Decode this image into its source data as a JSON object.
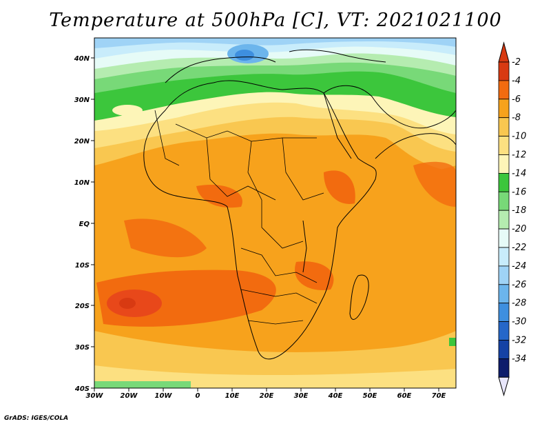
{
  "title": "Temperature at 500hPa [C], VT: 2021021100",
  "credit": "GrADS: IGES/COLA",
  "map": {
    "lon_labels": [
      "30W",
      "20W",
      "10W",
      "0",
      "10E",
      "20E",
      "30E",
      "40E",
      "50E",
      "60E",
      "70E"
    ],
    "lat_labels": [
      "40N",
      "30N",
      "20N",
      "10N",
      "EQ",
      "10S",
      "20S",
      "30S",
      "40S"
    ]
  },
  "colorbar": {
    "labels": [
      "-2",
      "-4",
      "-6",
      "-8",
      "-10",
      "-12",
      "-14",
      "-16",
      "-18",
      "-20",
      "-22",
      "-24",
      "-26",
      "-28",
      "-30",
      "-32",
      "-34"
    ],
    "colors": [
      "#d83a12",
      "#f26b0f",
      "#f7a21c",
      "#f9c750",
      "#fce081",
      "#fdf5b8",
      "#3cc63c",
      "#78d978",
      "#b5ecb0",
      "#e6fbf7",
      "#c8ecfb",
      "#9fd3f6",
      "#6cb5ec",
      "#3e8fdf",
      "#2567c9",
      "#1542a5",
      "#0d1c6b"
    ]
  }
}
